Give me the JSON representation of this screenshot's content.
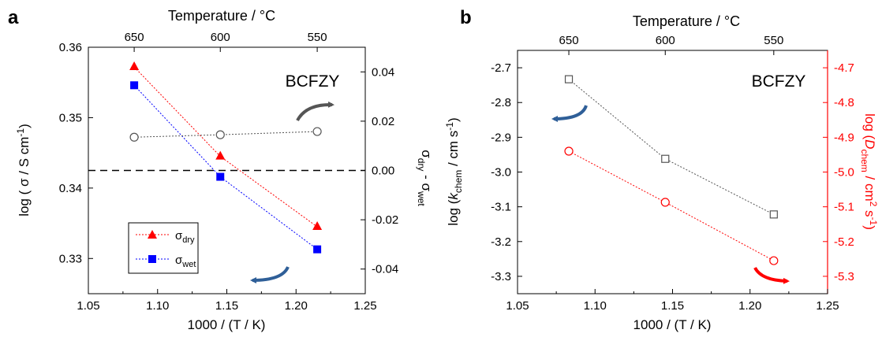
{
  "chart_data": [
    {
      "panel": "a",
      "type": "scatter",
      "title": "",
      "annotation": "BCFZY",
      "xlabel": "1000 / (T / K)",
      "xlim": [
        1.05,
        1.25
      ],
      "xticks": [
        "1.05",
        "1.10",
        "1.15",
        "1.20",
        "1.25"
      ],
      "top_axis_label": "Temperature / °C",
      "top_ticks": [
        {
          "label": "650",
          "x": 1.0831
        },
        {
          "label": "600",
          "x": 1.1453
        },
        {
          "label": "550",
          "x": 1.2153
        }
      ],
      "ylabel": "log ( σ / S cm⁻¹)",
      "ylim": [
        0.325,
        0.36
      ],
      "yticks": [
        "0.33",
        "0.34",
        "0.35",
        "0.36"
      ],
      "y2label": "σdry - σwet",
      "y2lim": [
        -0.05,
        0.05
      ],
      "y2ticks": [
        "-0.04",
        "-0.02",
        "0.00",
        "0.02",
        "0.04"
      ],
      "zero_line_y2": 0.0,
      "legend_position": "bottom-left",
      "series": [
        {
          "name": "σdry",
          "axis": "left",
          "marker": "triangle",
          "color": "#ff0000",
          "x": [
            1.0831,
            1.1453,
            1.2153
          ],
          "y": [
            0.3572,
            0.3445,
            0.3345
          ]
        },
        {
          "name": "σwet",
          "axis": "left",
          "marker": "square",
          "color": "#0000ff",
          "x": [
            1.0831,
            1.1453,
            1.2153
          ],
          "y": [
            0.3546,
            0.3416,
            0.3313
          ]
        },
        {
          "name": "",
          "axis": "right",
          "marker": "open-circle",
          "color": "#555555",
          "x": [
            1.0831,
            1.1453,
            1.2153
          ],
          "y": [
            0.0135,
            0.0145,
            0.0158
          ]
        }
      ]
    },
    {
      "panel": "b",
      "type": "scatter",
      "title": "",
      "annotation": "BCFZY",
      "xlabel": "1000 / (T / K)",
      "xlim": [
        1.05,
        1.25
      ],
      "xticks": [
        "1.05",
        "1.10",
        "1.15",
        "1.20",
        "1.25"
      ],
      "top_axis_label": "Temperature / °C",
      "top_ticks": [
        {
          "label": "650",
          "x": 1.0831
        },
        {
          "label": "600",
          "x": 1.1453
        },
        {
          "label": "550",
          "x": 1.2153
        }
      ],
      "ylabel": "log (kchem / cm s⁻¹)",
      "ylim": [
        -3.35,
        -2.65
      ],
      "yticks": [
        "-3.3",
        "-3.2",
        "-3.1",
        "-3.0",
        "-2.9",
        "-2.8",
        "-2.7"
      ],
      "y2label": "log (Dchem / cm² s⁻¹)",
      "y2lim": [
        -5.35,
        -4.65
      ],
      "y2ticks": [
        "-5.3",
        "-5.2",
        "-5.1",
        "-5.0",
        "-4.9",
        "-4.8",
        "-4.7"
      ],
      "right_axis_color": "#ff0000",
      "series": [
        {
          "name": "",
          "axis": "left",
          "marker": "open-square",
          "color": "#555555",
          "x": [
            1.0831,
            1.1453,
            1.2153
          ],
          "y": [
            -2.733,
            -2.962,
            -3.122
          ]
        },
        {
          "name": "",
          "axis": "right",
          "marker": "open-circle",
          "color": "#ff0000",
          "x": [
            1.0831,
            1.1453,
            1.2153
          ],
          "y": [
            -4.94,
            -5.087,
            -5.255
          ]
        }
      ]
    }
  ],
  "panel_labels": {
    "a": "a",
    "b": "b"
  },
  "legend_a": [
    {
      "main": "σ",
      "sub": "dry",
      "color": "#ff0000",
      "marker": "triangle"
    },
    {
      "main": "σ",
      "sub": "wet",
      "color": "#0000ff",
      "marker": "square"
    }
  ],
  "colors": {
    "arrow_left": "#2f5f98",
    "arrow_right_a": "#555555",
    "arrow_right_b": "#ff0000"
  }
}
